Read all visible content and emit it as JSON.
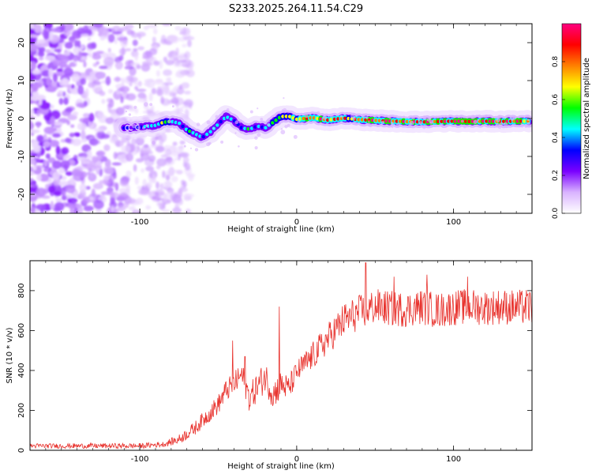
{
  "title": "S233.2025.264.11.54.C29",
  "chart_data": [
    {
      "type": "heatmap",
      "name": "spectrogram",
      "xlabel": "Height of straight line (km)",
      "ylabel": "Frequency (Hz)",
      "xlim": [
        -170,
        150
      ],
      "ylim": [
        -25,
        25
      ],
      "xticks": [
        -100,
        0,
        100
      ],
      "yticks": [
        -20,
        -10,
        0,
        10,
        20
      ],
      "colorbar": {
        "label": "Normalized spectral amplitude",
        "range": [
          0,
          1
        ],
        "ticks": [
          "0.0",
          "0.2",
          "0.4",
          "0.6",
          "0.8"
        ],
        "colors": [
          "#ffffff",
          "#d9b3ff",
          "#7a00ff",
          "#0000ff",
          "#00ffff",
          "#00ff00",
          "#ffff00",
          "#ff8000",
          "#ff0000",
          "#ff0080"
        ]
      },
      "noise_region": {
        "x_range": [
          -170,
          -85
        ],
        "y_range": [
          -25,
          25
        ]
      },
      "ridge": {
        "x": [
          -110,
          -100,
          -90,
          -85,
          -80,
          -75,
          -70,
          -65,
          -60,
          -55,
          -50,
          -45,
          -40,
          -35,
          -30,
          -25,
          -20,
          -15,
          -10,
          -5,
          0,
          10,
          20,
          30,
          40,
          50,
          60,
          70,
          80,
          90,
          100,
          110,
          120,
          130,
          140,
          148
        ],
        "freq": [
          -2.5,
          -2.3,
          -1.8,
          -1,
          -0.8,
          -1.2,
          -3,
          -4,
          -5,
          -3.5,
          -1.5,
          0.5,
          -0.5,
          -2.5,
          -2.8,
          -2,
          -2.5,
          -1,
          0.5,
          0.6,
          -0.2,
          0.2,
          -0.4,
          0.1,
          -0.3,
          -0.5,
          -0.7,
          -0.8,
          -0.9,
          -0.8,
          -0.7,
          -0.8,
          -0.7,
          -0.8,
          -0.7,
          -0.7
        ],
        "amplitude": [
          0.3,
          0.35,
          0.45,
          0.55,
          0.5,
          0.4,
          0.45,
          0.5,
          0.45,
          0.4,
          0.45,
          0.5,
          0.4,
          0.4,
          0.45,
          0.4,
          0.45,
          0.55,
          0.65,
          0.75,
          0.8,
          0.85,
          0.85,
          0.85,
          0.8,
          0.9,
          0.92,
          0.95,
          0.9,
          0.95,
          0.9,
          0.95,
          0.9,
          0.92,
          0.88,
          0.8
        ]
      }
    },
    {
      "type": "line",
      "name": "snr",
      "xlabel": "Height of straight line (km)",
      "ylabel": "SNR (10 * v/v)",
      "xlim": [
        -170,
        150
      ],
      "ylim": [
        0,
        950
      ],
      "xticks": [
        -100,
        0,
        100
      ],
      "yticks": [
        0,
        200,
        400,
        600,
        800
      ],
      "color": "#e8332e",
      "anchors": {
        "x": [
          -170,
          -100,
          -85,
          -75,
          -65,
          -55,
          -50,
          -45,
          -40,
          -35,
          -30,
          -25,
          -20,
          -15,
          -10,
          -5,
          0,
          10,
          20,
          30,
          40,
          50,
          60,
          70,
          80,
          90,
          100,
          110,
          120,
          130,
          140,
          150
        ],
        "y": [
          22,
          22,
          30,
          55,
          110,
          190,
          230,
          300,
          330,
          380,
          260,
          320,
          370,
          280,
          330,
          310,
          390,
          470,
          560,
          650,
          690,
          720,
          710,
          705,
          720,
          700,
          715,
          720,
          715,
          720,
          715,
          720
        ]
      },
      "peaks": [
        {
          "x": -52,
          "y": 240
        },
        {
          "x": -41,
          "y": 550
        },
        {
          "x": -33,
          "y": 470
        },
        {
          "x": -11,
          "y": 720
        },
        {
          "x": 44,
          "y": 940
        },
        {
          "x": 62,
          "y": 870
        },
        {
          "x": 83,
          "y": 880
        },
        {
          "x": 109,
          "y": 870
        }
      ],
      "noise_amplitude": {
        "x": [
          -170,
          -85,
          -60,
          -20,
          0,
          30,
          150
        ],
        "amp": [
          12,
          14,
          40,
          80,
          60,
          90,
          90
        ]
      }
    }
  ]
}
